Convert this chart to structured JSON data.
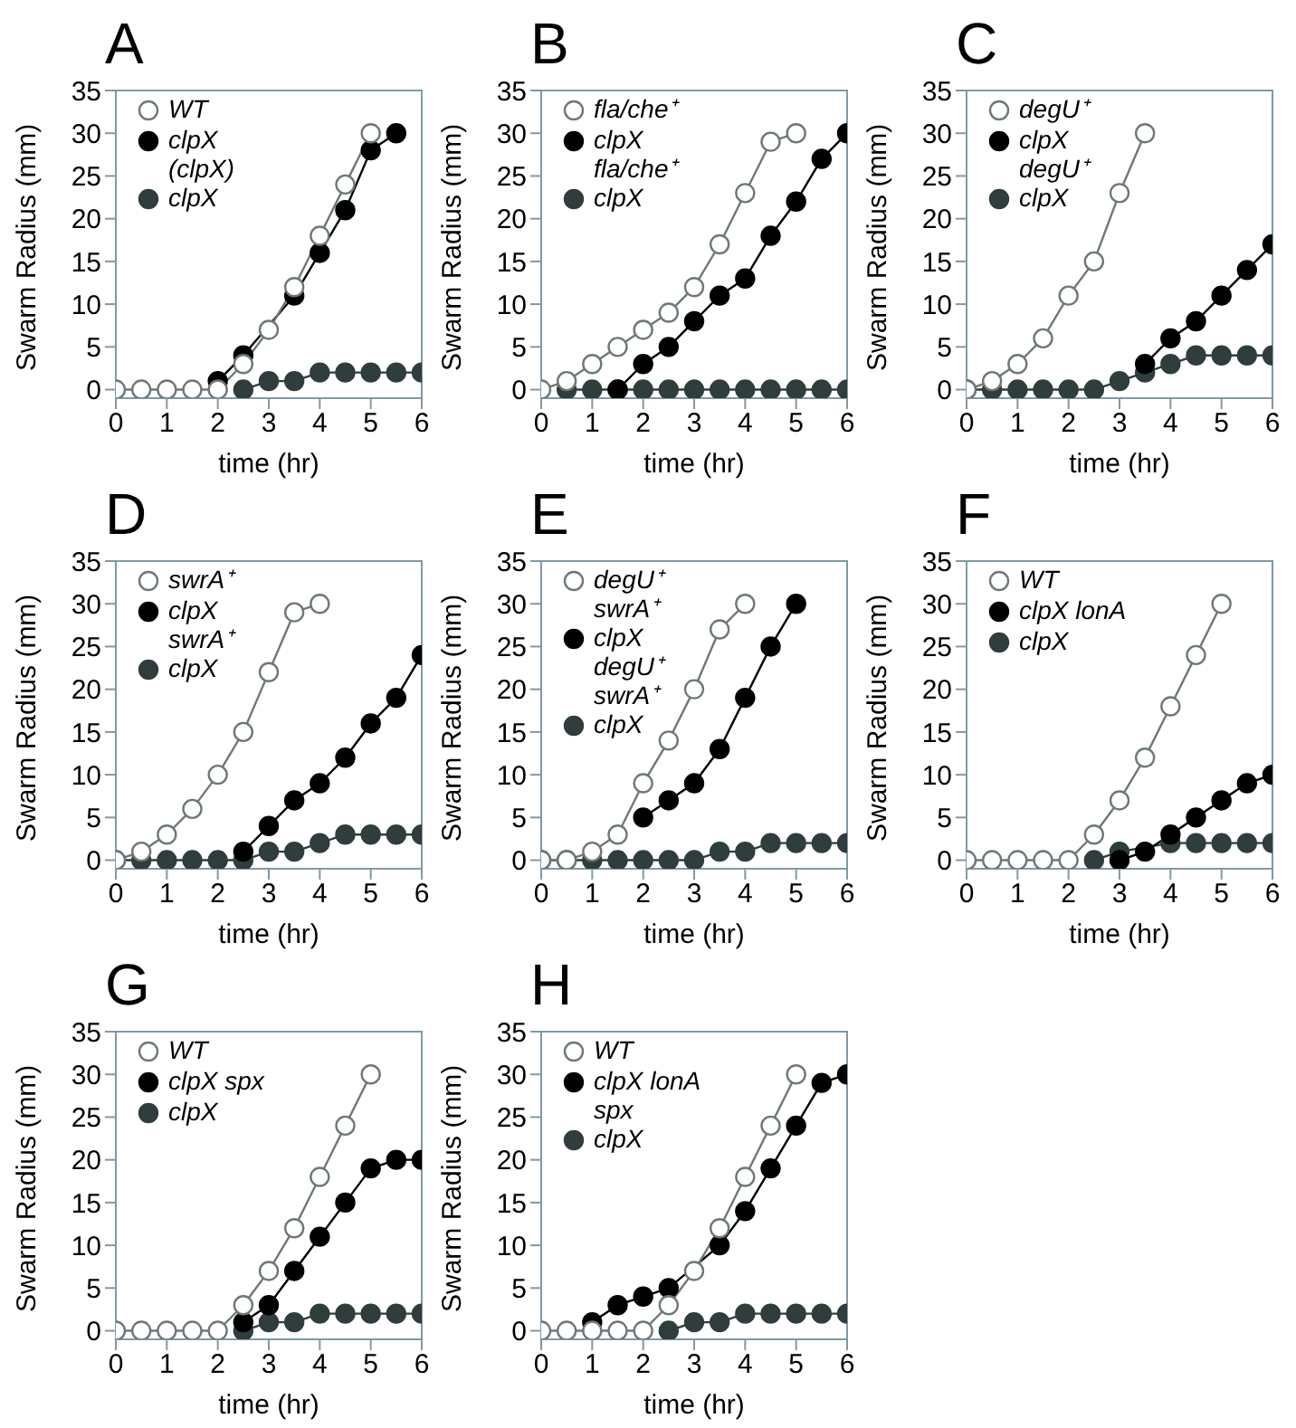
{
  "chart_data": [
    {
      "type": "line",
      "title": "A",
      "xlabel": "time (hr)",
      "ylabel": "Swarm Radius (mm)",
      "xlim": [
        0,
        6
      ],
      "xticks": [
        0,
        1,
        2,
        3,
        4,
        5,
        6
      ],
      "ylim": [
        -1,
        35
      ],
      "yticks": [
        0,
        5,
        10,
        15,
        20,
        25,
        30,
        35
      ],
      "legend": "top left",
      "marker": "circle",
      "line_style": "solid",
      "series": [
        {
          "name": "WT",
          "color": "#ffffff",
          "x": [
            0,
            0.5,
            1,
            1.5,
            2,
            2.5,
            3,
            3.5,
            4,
            4.5,
            5
          ],
          "values": [
            0,
            0,
            0,
            0,
            0,
            3,
            7,
            12,
            18,
            24,
            30
          ]
        },
        {
          "name": "clpX (clpX)",
          "color": "#000000",
          "x": [
            2,
            2.5,
            3,
            3.5,
            4,
            4.5,
            5,
            5.5
          ],
          "values": [
            1,
            4,
            null,
            11,
            16,
            21,
            28,
            30
          ]
        },
        {
          "name": "clpX",
          "color": "#2f3d3d",
          "x": [
            2.5,
            3,
            3.5,
            4,
            4.5,
            5,
            5.5,
            6
          ],
          "values": [
            0,
            1,
            1,
            2,
            2,
            2,
            2,
            2
          ]
        }
      ]
    },
    {
      "type": "line",
      "title": "B",
      "xlabel": "time (hr)",
      "ylabel": "Swarm Radius (mm)",
      "xlim": [
        0,
        6
      ],
      "xticks": [
        0,
        1,
        2,
        3,
        4,
        5,
        6
      ],
      "ylim": [
        -1,
        35
      ],
      "yticks": [
        0,
        5,
        10,
        15,
        20,
        25,
        30,
        35
      ],
      "legend": "top left",
      "marker": "circle",
      "line_style": "solid",
      "series": [
        {
          "name": "fla/che⁺",
          "color": "#ffffff",
          "x": [
            0,
            0.5,
            1,
            1.5,
            2,
            2.5,
            3,
            3.5,
            4,
            4.5,
            5
          ],
          "values": [
            0,
            1,
            3,
            5,
            7,
            9,
            12,
            17,
            23,
            29,
            30
          ]
        },
        {
          "name": "clpX fla/che⁺",
          "color": "#000000",
          "x": [
            1.5,
            2,
            2.5,
            3,
            3.5,
            4,
            4.5,
            5,
            5.5,
            6
          ],
          "values": [
            0,
            3,
            5,
            8,
            11,
            13,
            18,
            22,
            27,
            30
          ]
        },
        {
          "name": "clpX",
          "color": "#2f3d3d",
          "x": [
            0.5,
            1,
            1.5,
            2,
            2.5,
            3,
            3.5,
            4,
            4.5,
            5,
            5.5,
            6
          ],
          "values": [
            0,
            0,
            0,
            0,
            0,
            0,
            0,
            0,
            0,
            0,
            0,
            0
          ]
        }
      ]
    },
    {
      "type": "line",
      "title": "C",
      "xlabel": "time (hr)",
      "ylabel": "Swarm Radius (mm)",
      "xlim": [
        0,
        6
      ],
      "xticks": [
        0,
        1,
        2,
        3,
        4,
        5,
        6
      ],
      "ylim": [
        -1,
        35
      ],
      "yticks": [
        0,
        5,
        10,
        15,
        20,
        25,
        30,
        35
      ],
      "legend": "top left",
      "marker": "circle",
      "line_style": "solid",
      "series": [
        {
          "name": "degU⁺",
          "color": "#ffffff",
          "x": [
            0,
            0.5,
            1,
            1.5,
            2,
            2.5,
            3,
            3.5
          ],
          "values": [
            0,
            1,
            3,
            6,
            11,
            15,
            23,
            30
          ]
        },
        {
          "name": "clpX degU⁺",
          "color": "#000000",
          "x": [
            3.5,
            4,
            4.5,
            5,
            5.5,
            6
          ],
          "values": [
            3,
            6,
            8,
            11,
            14,
            17
          ]
        },
        {
          "name": "clpX",
          "color": "#2f3d3d",
          "x": [
            0,
            0.5,
            1,
            1.5,
            2,
            2.5,
            3,
            3.5,
            4,
            4.5,
            5,
            5.5,
            6
          ],
          "values": [
            0,
            0,
            0,
            0,
            0,
            0,
            1,
            2,
            3,
            4,
            4,
            4,
            4
          ]
        }
      ]
    },
    {
      "type": "line",
      "title": "D",
      "xlabel": "time (hr)",
      "ylabel": "Swarm Radius (mm)",
      "xlim": [
        0,
        6
      ],
      "xticks": [
        0,
        1,
        2,
        3,
        4,
        5,
        6
      ],
      "ylim": [
        -1,
        35
      ],
      "yticks": [
        0,
        5,
        10,
        15,
        20,
        25,
        30,
        35
      ],
      "legend": "top left",
      "marker": "circle",
      "line_style": "solid",
      "series": [
        {
          "name": "swrA⁺",
          "color": "#ffffff",
          "x": [
            0,
            0.5,
            1,
            1.5,
            2,
            2.5,
            3,
            3.5,
            4
          ],
          "values": [
            0,
            1,
            3,
            6,
            10,
            15,
            22,
            29,
            30
          ]
        },
        {
          "name": "clpX swrA⁺",
          "color": "#000000",
          "x": [
            2.5,
            3,
            3.5,
            4,
            4.5,
            5,
            5.5,
            6
          ],
          "values": [
            1,
            4,
            7,
            9,
            12,
            16,
            19,
            24
          ]
        },
        {
          "name": "clpX",
          "color": "#2f3d3d",
          "x": [
            0,
            0.5,
            1,
            1.5,
            2,
            2.5,
            3,
            3.5,
            4,
            4.5,
            5,
            5.5,
            6
          ],
          "values": [
            0,
            0,
            0,
            0,
            0,
            0,
            1,
            1,
            2,
            3,
            3,
            3,
            3
          ]
        }
      ]
    },
    {
      "type": "line",
      "title": "E",
      "xlabel": "time (hr)",
      "ylabel": "Swarm Radius (mm)",
      "xlim": [
        0,
        6
      ],
      "xticks": [
        0,
        1,
        2,
        3,
        4,
        5,
        6
      ],
      "ylim": [
        -1,
        35
      ],
      "yticks": [
        0,
        5,
        10,
        15,
        20,
        25,
        30,
        35
      ],
      "legend": "top left",
      "marker": "circle",
      "line_style": "solid",
      "series": [
        {
          "name": "degU⁺ swrA⁺",
          "color": "#ffffff",
          "x": [
            0,
            0.5,
            1,
            1.5,
            2,
            2.5,
            3,
            3.5,
            4
          ],
          "values": [
            0,
            0,
            1,
            3,
            9,
            14,
            20,
            27,
            30
          ]
        },
        {
          "name": "clpX degU⁺ swrA⁺",
          "color": "#000000",
          "x": [
            2,
            2.5,
            3,
            3.5,
            4,
            4.5,
            5
          ],
          "values": [
            5,
            7,
            9,
            13,
            19,
            25,
            30
          ]
        },
        {
          "name": "clpX",
          "color": "#2f3d3d",
          "x": [
            0,
            0.5,
            1,
            1.5,
            2,
            2.5,
            3,
            3.5,
            4,
            4.5,
            5,
            5.5,
            6
          ],
          "values": [
            0,
            0,
            0,
            0,
            0,
            0,
            0,
            1,
            1,
            2,
            2,
            2,
            2
          ]
        }
      ]
    },
    {
      "type": "line",
      "title": "F",
      "xlabel": "time (hr)",
      "ylabel": "Swarm Radius (mm)",
      "xlim": [
        0,
        6
      ],
      "xticks": [
        0,
        1,
        2,
        3,
        4,
        5,
        6
      ],
      "ylim": [
        -1,
        35
      ],
      "yticks": [
        0,
        5,
        10,
        15,
        20,
        25,
        30,
        35
      ],
      "legend": "top left",
      "marker": "circle",
      "line_style": "solid",
      "series": [
        {
          "name": "WT",
          "color": "#ffffff",
          "x": [
            0,
            0.5,
            1,
            1.5,
            2,
            2.5,
            3,
            3.5,
            4,
            4.5,
            5
          ],
          "values": [
            0,
            0,
            0,
            0,
            0,
            3,
            7,
            12,
            18,
            24,
            30
          ]
        },
        {
          "name": "clpX lonA",
          "color": "#000000",
          "x": [
            3,
            3.5,
            4,
            4.5,
            5,
            5.5,
            6
          ],
          "values": [
            0,
            1,
            3,
            5,
            7,
            9,
            10
          ]
        },
        {
          "name": "clpX",
          "color": "#2f3d3d",
          "x": [
            2.5,
            3,
            3.5,
            4,
            4.5,
            5,
            5.5,
            6
          ],
          "values": [
            0,
            1,
            null,
            2,
            2,
            2,
            2,
            2
          ]
        }
      ]
    },
    {
      "type": "line",
      "title": "G",
      "xlabel": "time (hr)",
      "ylabel": "Swarm Radius (mm)",
      "xlim": [
        0,
        6
      ],
      "xticks": [
        0,
        1,
        2,
        3,
        4,
        5,
        6
      ],
      "ylim": [
        -1,
        35
      ],
      "yticks": [
        0,
        5,
        10,
        15,
        20,
        25,
        30,
        35
      ],
      "legend": "top left",
      "marker": "circle",
      "line_style": "solid",
      "series": [
        {
          "name": "WT",
          "color": "#ffffff",
          "x": [
            0,
            0.5,
            1,
            1.5,
            2,
            2.5,
            3,
            3.5,
            4,
            4.5,
            5
          ],
          "values": [
            0,
            0,
            0,
            0,
            0,
            3,
            7,
            12,
            18,
            24,
            30
          ]
        },
        {
          "name": "clpX spx",
          "color": "#000000",
          "x": [
            2.5,
            3,
            3.5,
            4,
            4.5,
            5,
            5.5,
            6
          ],
          "values": [
            1,
            3,
            7,
            11,
            15,
            19,
            20,
            20
          ]
        },
        {
          "name": "clpX",
          "color": "#2f3d3d",
          "x": [
            2.5,
            3,
            3.5,
            4,
            4.5,
            5,
            5.5,
            6
          ],
          "values": [
            0,
            1,
            1,
            2,
            2,
            2,
            2,
            2
          ]
        }
      ]
    },
    {
      "type": "line",
      "title": "H",
      "xlabel": "time (hr)",
      "ylabel": "Swarm Radius (mm)",
      "xlim": [
        0,
        6
      ],
      "xticks": [
        0,
        1,
        2,
        3,
        4,
        5,
        6
      ],
      "ylim": [
        -1,
        35
      ],
      "yticks": [
        0,
        5,
        10,
        15,
        20,
        25,
        30,
        35
      ],
      "legend": "top left",
      "marker": "circle",
      "line_style": "solid",
      "series": [
        {
          "name": "WT",
          "color": "#ffffff",
          "x": [
            0,
            0.5,
            1,
            1.5,
            2,
            2.5,
            3,
            3.5,
            4,
            4.5,
            5
          ],
          "values": [
            0,
            0,
            0,
            0,
            0,
            3,
            7,
            12,
            18,
            24,
            30
          ]
        },
        {
          "name": "clpX lonA spx",
          "color": "#000000",
          "x": [
            1,
            1.5,
            2,
            2.5,
            3,
            3.5,
            4,
            4.5,
            5,
            5.5,
            6
          ],
          "values": [
            1,
            3,
            4,
            5,
            null,
            10,
            14,
            19,
            24,
            29,
            30
          ]
        },
        {
          "name": "clpX",
          "color": "#2f3d3d",
          "x": [
            2.5,
            3,
            3.5,
            4,
            4.5,
            5,
            5.5,
            6
          ],
          "values": [
            0,
            1,
            1,
            2,
            2,
            2,
            2,
            2
          ]
        }
      ]
    }
  ]
}
